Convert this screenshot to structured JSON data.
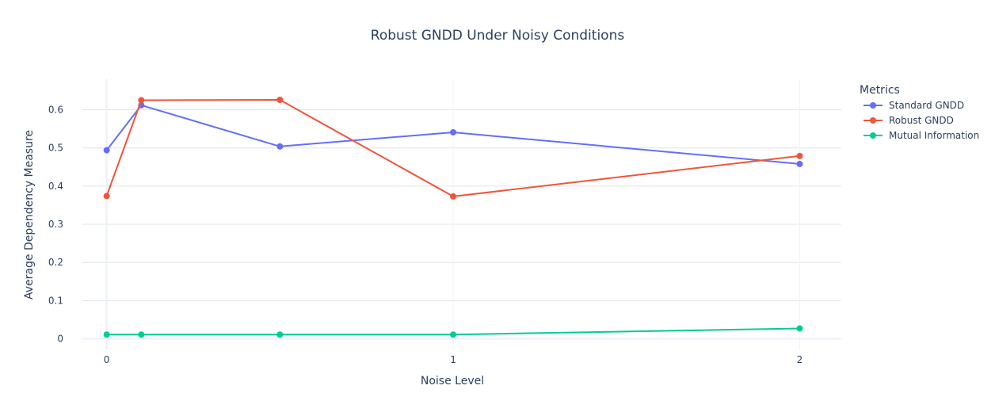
{
  "chart_data": {
    "type": "line",
    "title": "Robust GNDD Under Noisy Conditions",
    "xlabel": "Noise Level",
    "ylabel": "Average Dependency Measure",
    "x": [
      0,
      0.1,
      0.5,
      1,
      2
    ],
    "xticks": [
      0,
      1,
      2
    ],
    "xtick_labels": [
      "0",
      "1",
      "2"
    ],
    "xlim": [
      -0.07,
      2.12
    ],
    "ylim": [
      -0.03,
      0.68
    ],
    "yticks": [
      0,
      0.1,
      0.2,
      0.3,
      0.4,
      0.5,
      0.6
    ],
    "ytick_labels": [
      "0",
      "0.1",
      "0.2",
      "0.3",
      "0.4",
      "0.5",
      "0.6"
    ],
    "grid": true,
    "legend": {
      "title": "Metrics",
      "position": "right"
    },
    "series": [
      {
        "name": "Standard GNDD",
        "color": "#636efa",
        "values": [
          0.494,
          0.612,
          0.504,
          0.541,
          0.458
        ]
      },
      {
        "name": "Robust GNDD",
        "color": "#ef553b",
        "values": [
          0.374,
          0.625,
          0.626,
          0.373,
          0.479
        ]
      },
      {
        "name": "Mutual Information",
        "color": "#00cc96",
        "values": [
          0.011,
          0.011,
          0.011,
          0.011,
          0.027
        ]
      }
    ]
  }
}
